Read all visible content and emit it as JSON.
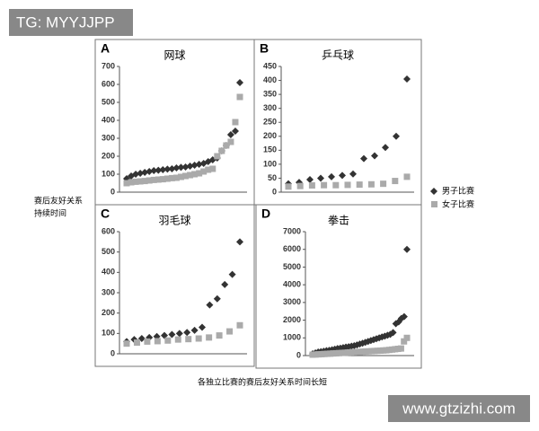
{
  "figure": {
    "ylabel": [
      "赛后友好关系",
      "持续时间"
    ],
    "xlabel": "各独立比赛的赛后友好关系时间长短",
    "watermarks": [
      "TG: MYYJJPP",
      "www.gtzizhi.com"
    ]
  },
  "chart_data": [
    {
      "type": "scatter",
      "label": "A",
      "title": "网球",
      "ylim": [
        0,
        700
      ],
      "yticks": [
        0,
        100,
        200,
        300,
        400,
        500,
        600,
        700
      ],
      "series": [
        {
          "name": "男子比赛",
          "color": "#333333",
          "marker": "diamond",
          "values": [
            75,
            90,
            100,
            105,
            110,
            115,
            120,
            122,
            125,
            128,
            130,
            135,
            138,
            140,
            145,
            150,
            155,
            160,
            170,
            180,
            190,
            230,
            260,
            320,
            340,
            610
          ]
        },
        {
          "name": "女子比赛",
          "color": "#aaaaaa",
          "marker": "square",
          "values": [
            50,
            55,
            58,
            60,
            62,
            65,
            68,
            70,
            72,
            75,
            78,
            80,
            85,
            90,
            95,
            100,
            105,
            115,
            125,
            130,
            200,
            230,
            260,
            280,
            390,
            530
          ]
        }
      ]
    },
    {
      "type": "scatter",
      "label": "B",
      "title": "乒乓球",
      "ylim": [
        0,
        450
      ],
      "yticks": [
        0,
        50,
        100,
        150,
        200,
        250,
        300,
        350,
        400,
        450
      ],
      "series": [
        {
          "name": "男子比赛",
          "color": "#333333",
          "marker": "diamond",
          "values": [
            30,
            35,
            45,
            50,
            55,
            60,
            65,
            120,
            130,
            160,
            200,
            405
          ]
        },
        {
          "name": "女子比赛",
          "color": "#aaaaaa",
          "marker": "square",
          "values": [
            20,
            22,
            24,
            25,
            25,
            26,
            27,
            28,
            30,
            40,
            55
          ]
        }
      ]
    },
    {
      "type": "scatter",
      "label": "C",
      "title": "羽毛球",
      "ylim": [
        0,
        600
      ],
      "yticks": [
        0,
        100,
        200,
        300,
        400,
        500,
        600
      ],
      "series": [
        {
          "name": "男子比赛",
          "color": "#333333",
          "marker": "diamond",
          "values": [
            60,
            70,
            75,
            80,
            85,
            90,
            95,
            100,
            105,
            115,
            130,
            240,
            270,
            340,
            390,
            550
          ]
        },
        {
          "name": "女子比赛",
          "color": "#aaaaaa",
          "marker": "square",
          "values": [
            50,
            55,
            60,
            62,
            65,
            70,
            72,
            75,
            80,
            90,
            110,
            140
          ]
        }
      ]
    },
    {
      "type": "scatter",
      "label": "D",
      "title": "拳击",
      "ylim": [
        0,
        7000
      ],
      "yticks": [
        0,
        1000,
        2000,
        3000,
        4000,
        5000,
        6000,
        7000
      ],
      "series": [
        {
          "name": "男子比赛",
          "color": "#333333",
          "marker": "diamond",
          "values": [
            100,
            150,
            200,
            220,
            250,
            280,
            300,
            330,
            360,
            400,
            420,
            450,
            480,
            500,
            530,
            560,
            600,
            650,
            700,
            750,
            800,
            850,
            900,
            950,
            1000,
            1050,
            1100,
            1150,
            1200,
            1300,
            1800,
            1900,
            2100,
            2200,
            6000
          ]
        },
        {
          "name": "女子比赛",
          "color": "#aaaaaa",
          "marker": "square",
          "values": [
            50,
            60,
            70,
            80,
            90,
            100,
            110,
            120,
            130,
            140,
            150,
            160,
            170,
            180,
            190,
            200,
            210,
            220,
            230,
            240,
            250,
            260,
            270,
            280,
            290,
            300,
            320,
            340,
            360,
            380,
            400,
            800,
            1000
          ]
        }
      ]
    }
  ]
}
